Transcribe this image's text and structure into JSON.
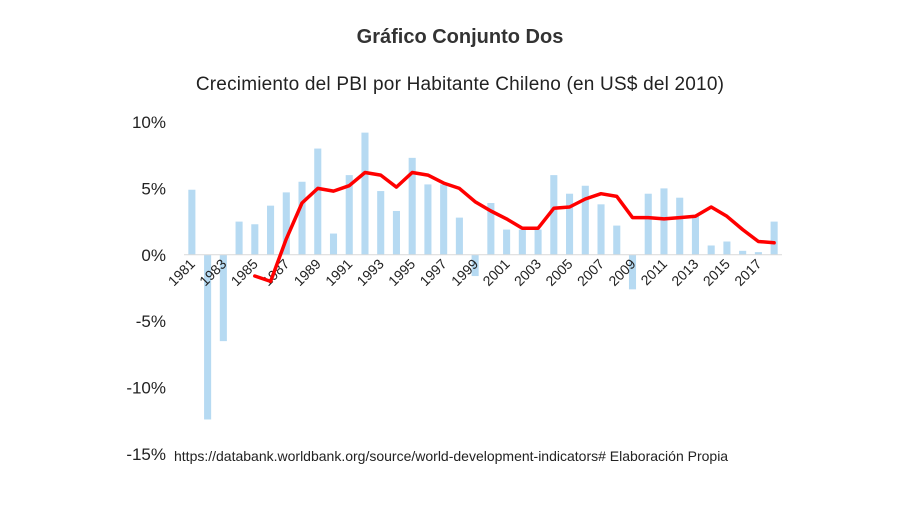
{
  "header": {
    "title": "Gráfico Conjunto Dos"
  },
  "chart_data": {
    "type": "bar",
    "title": "Crecimiento  del PBI por Habitante  Chileno  (en US$ del 2010)",
    "source": "https://databank.worldbank.org/source/world-development-indicators# Elaboración Propia",
    "ylim": [
      -15,
      10
    ],
    "yticks": [
      10,
      5,
      0,
      -5,
      -10,
      -15
    ],
    "ytick_labels": [
      "10%",
      "5%",
      "0%",
      "-5%",
      "-10%",
      "-15%"
    ],
    "xtick_labels": [
      "1981",
      "1983",
      "1985",
      "1987",
      "1989",
      "1991",
      "1993",
      "1995",
      "1997",
      "1999",
      "2001",
      "2003",
      "2005",
      "2007",
      "2009",
      "2011",
      "2013",
      "2015",
      "2017"
    ],
    "categories": [
      1981,
      1982,
      1983,
      1984,
      1985,
      1986,
      1987,
      1988,
      1989,
      1990,
      1991,
      1992,
      1993,
      1994,
      1995,
      1996,
      1997,
      1998,
      1999,
      2000,
      2001,
      2002,
      2003,
      2004,
      2005,
      2006,
      2007,
      2008,
      2009,
      2010,
      2011,
      2012,
      2013,
      2014,
      2015,
      2016,
      2017,
      2018
    ],
    "series": [
      {
        "type": "bar",
        "color": "#a9d3f0",
        "values": [
          4.9,
          -12.4,
          -6.5,
          2.5,
          2.3,
          3.7,
          4.7,
          5.5,
          8.0,
          1.6,
          6.0,
          9.2,
          4.8,
          3.3,
          7.3,
          5.3,
          5.3,
          2.8,
          -1.6,
          3.9,
          1.9,
          1.9,
          1.9,
          6.0,
          4.6,
          5.2,
          3.8,
          2.2,
          -2.6,
          4.6,
          5.0,
          4.3,
          3.0,
          0.7,
          1.0,
          0.3,
          0.2,
          2.5
        ]
      },
      {
        "type": "line",
        "color": "#ff0000",
        "values": [
          null,
          null,
          null,
          null,
          -1.6,
          -2.0,
          1.2,
          3.9,
          5.0,
          4.8,
          5.2,
          6.2,
          6.0,
          5.1,
          6.2,
          6.0,
          5.4,
          5.0,
          4.0,
          3.3,
          2.7,
          2.0,
          2.0,
          3.5,
          3.6,
          4.2,
          4.6,
          4.4,
          2.8,
          2.8,
          2.7,
          2.8,
          2.9,
          3.6,
          2.9,
          1.9,
          1.0,
          0.9
        ]
      }
    ]
  }
}
